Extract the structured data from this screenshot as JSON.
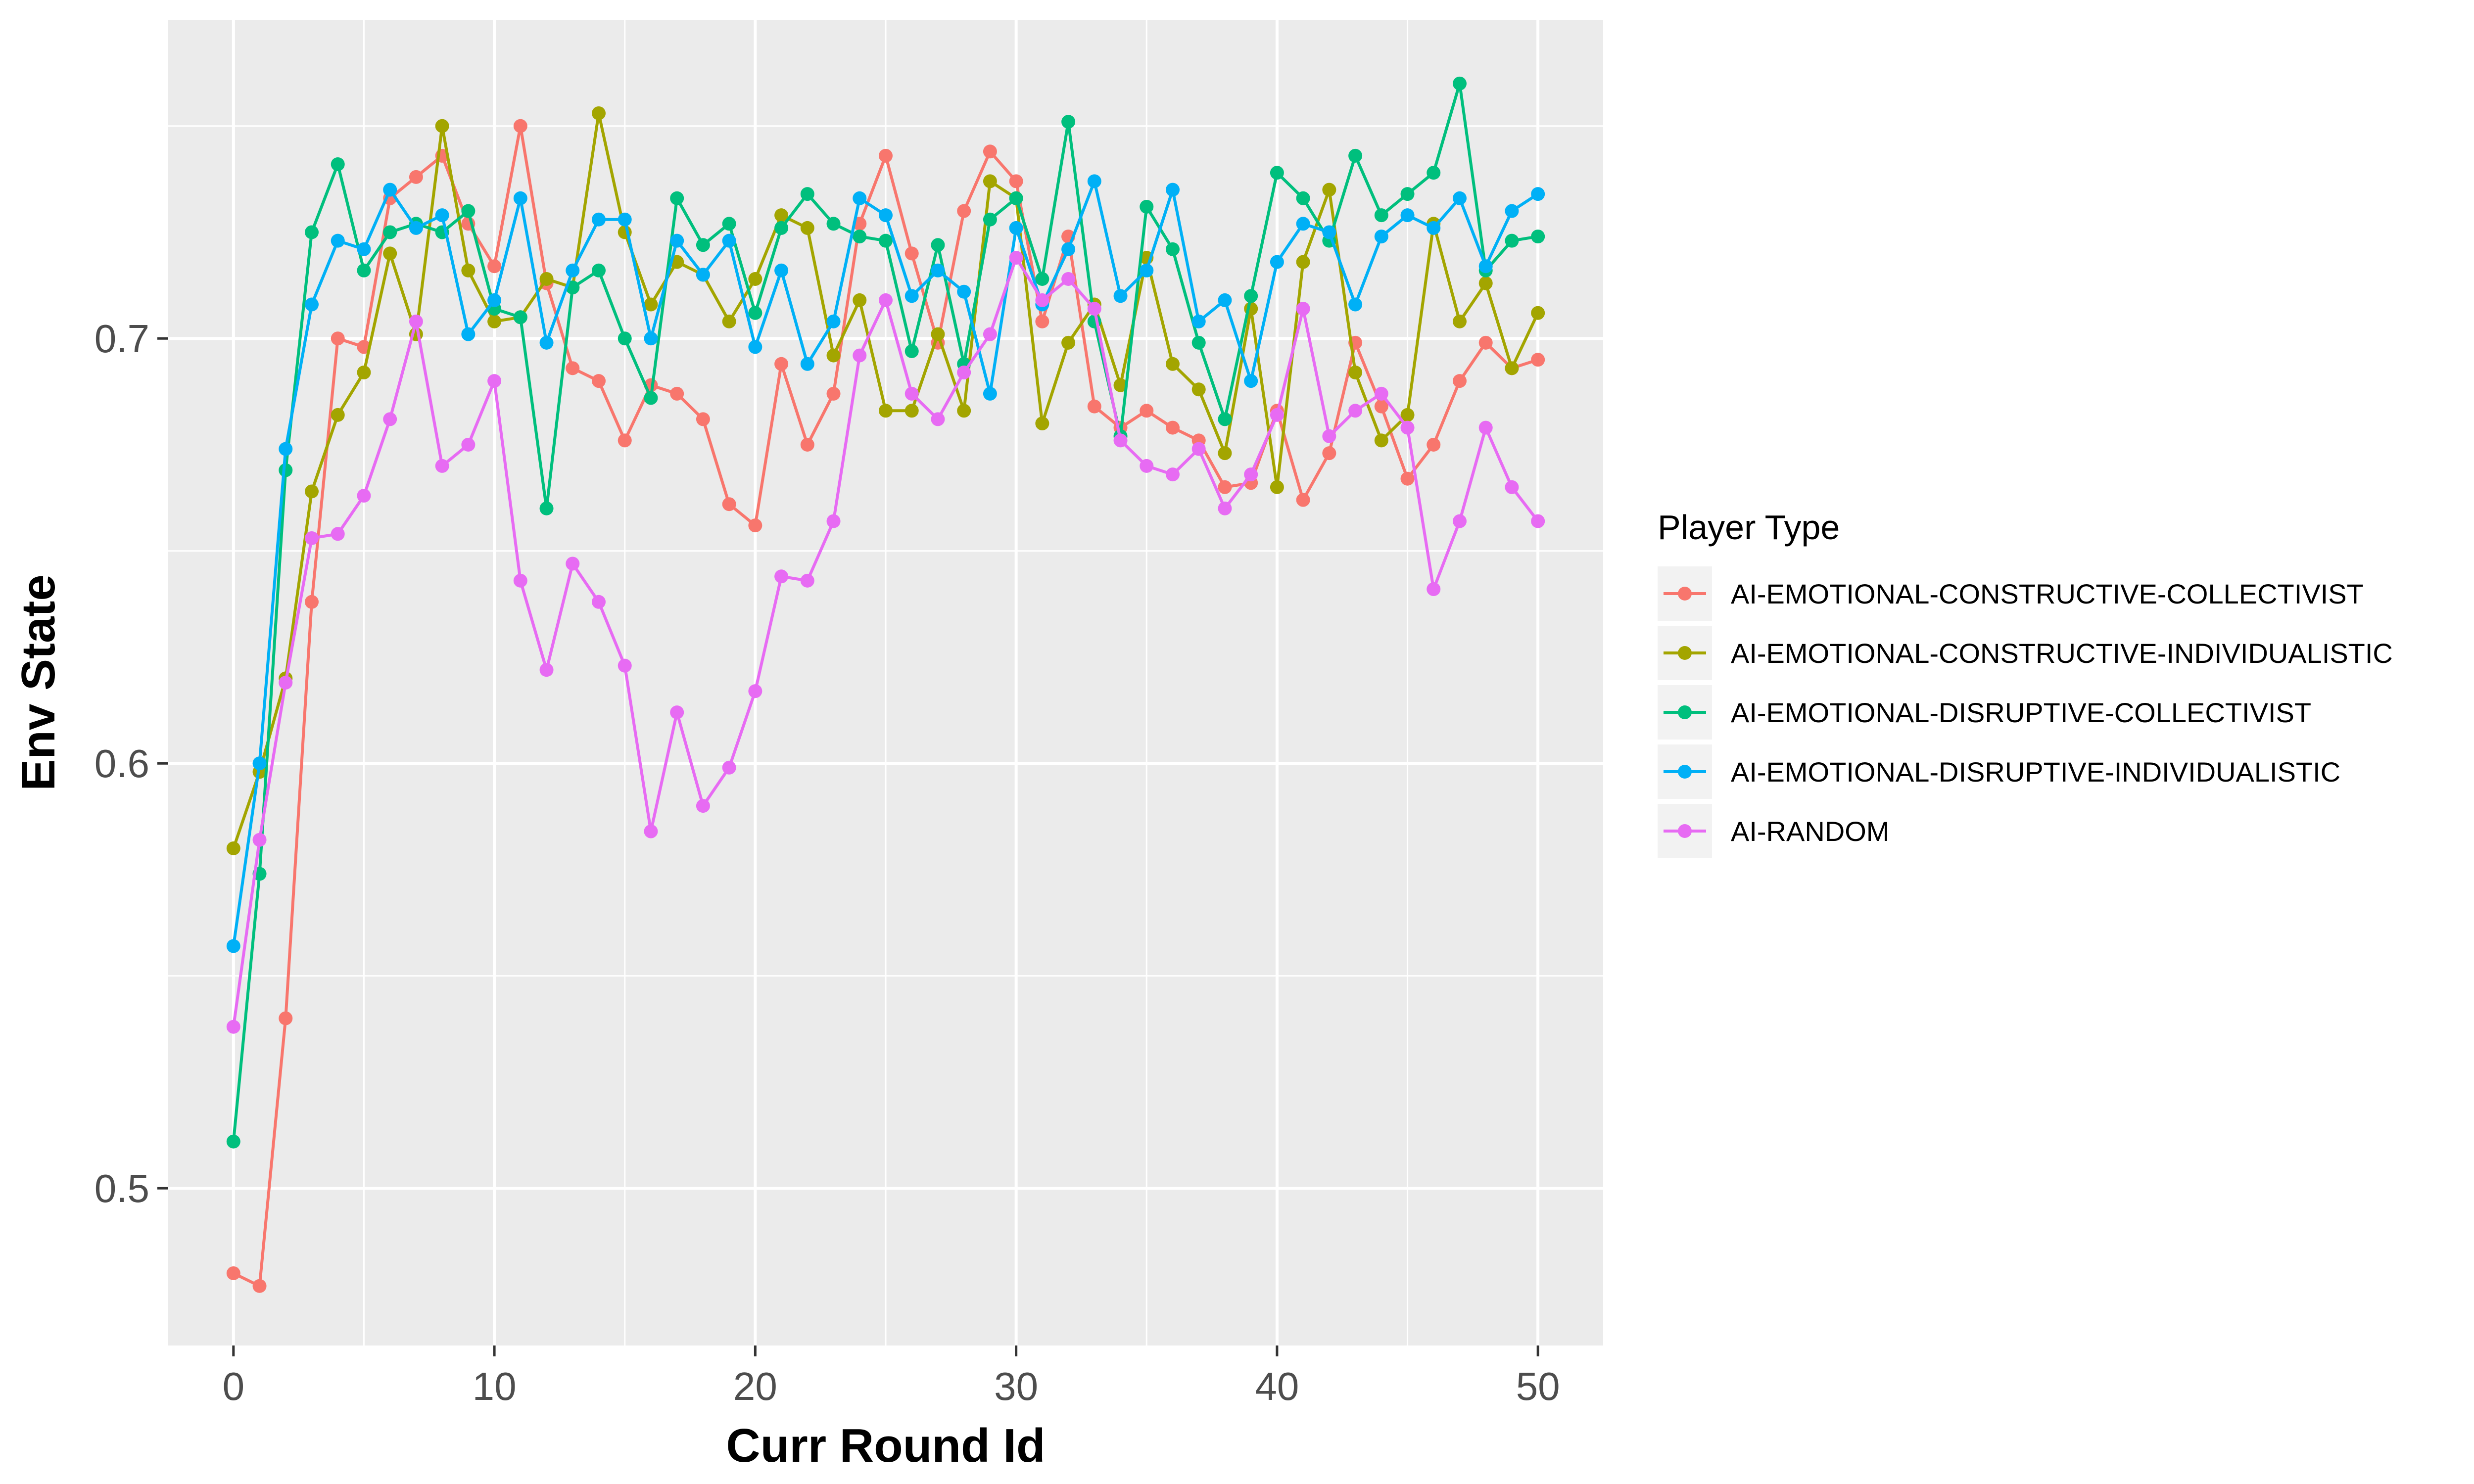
{
  "chart_data": {
    "type": "line",
    "xlabel": "Curr Round Id",
    "ylabel": "Env State",
    "xlim": [
      -2.5,
      52.5
    ],
    "ylim": [
      0.463,
      0.775
    ],
    "x_ticks": [
      0,
      10,
      20,
      30,
      40,
      50
    ],
    "x_tick_labels": [
      "0",
      "10",
      "20",
      "30",
      "40",
      "50"
    ],
    "y_ticks": [
      0.5,
      0.6,
      0.7
    ],
    "y_tick_labels": [
      "0.5",
      "0.6",
      "0.7"
    ],
    "grid": true,
    "legend_title": "Player Type",
    "legend_position": "right",
    "x": [
      0,
      1,
      2,
      3,
      4,
      5,
      6,
      7,
      8,
      9,
      10,
      11,
      12,
      13,
      14,
      15,
      16,
      17,
      18,
      19,
      20,
      21,
      22,
      23,
      24,
      25,
      26,
      27,
      28,
      29,
      30,
      31,
      32,
      33,
      34,
      35,
      36,
      37,
      38,
      39,
      40,
      41,
      42,
      43,
      44,
      45,
      46,
      47,
      48,
      49,
      50
    ],
    "series": [
      {
        "name": "AI-EMOTIONAL-CONSTRUCTIVE-COLLECTIVIST",
        "color": "#F8766D",
        "values": [
          0.48,
          0.477,
          0.54,
          0.638,
          0.7,
          0.698,
          0.733,
          0.738,
          0.743,
          0.727,
          0.717,
          0.75,
          0.713,
          0.693,
          0.69,
          0.676,
          0.689,
          0.687,
          0.681,
          0.661,
          0.656,
          0.694,
          0.675,
          0.687,
          0.727,
          0.743,
          0.72,
          0.699,
          0.73,
          0.744,
          0.737,
          0.704,
          0.724,
          0.684,
          0.679,
          0.683,
          0.679,
          0.676,
          0.665,
          0.666,
          0.683,
          0.662,
          0.673,
          0.699,
          0.684,
          0.667,
          0.675,
          0.69,
          0.699,
          0.693,
          0.695
        ]
      },
      {
        "name": "AI-EMOTIONAL-CONSTRUCTIVE-INDIVIDUALISTIC",
        "color": "#A3A500",
        "values": [
          0.58,
          0.598,
          0.62,
          0.664,
          0.682,
          0.692,
          0.72,
          0.701,
          0.75,
          0.716,
          0.704,
          0.705,
          0.714,
          0.712,
          0.753,
          0.725,
          0.708,
          0.718,
          0.715,
          0.704,
          0.714,
          0.729,
          0.726,
          0.696,
          0.709,
          0.683,
          0.683,
          0.701,
          0.683,
          0.737,
          0.733,
          0.68,
          0.699,
          0.708,
          0.689,
          0.719,
          0.694,
          0.688,
          0.673,
          0.707,
          0.665,
          0.718,
          0.735,
          0.692,
          0.676,
          0.682,
          0.727,
          0.704,
          0.713,
          0.693,
          0.706
        ]
      },
      {
        "name": "AI-EMOTIONAL-DISRUPTIVE-COLLECTIVIST",
        "color": "#00BF7D",
        "values": [
          0.511,
          0.574,
          0.669,
          0.725,
          0.741,
          0.716,
          0.725,
          0.727,
          0.725,
          0.73,
          0.707,
          0.705,
          0.66,
          0.712,
          0.716,
          0.7,
          0.686,
          0.733,
          0.722,
          0.727,
          0.706,
          0.726,
          0.734,
          0.727,
          0.724,
          0.723,
          0.697,
          0.722,
          0.694,
          0.728,
          0.733,
          0.714,
          0.751,
          0.704,
          0.677,
          0.731,
          0.721,
          0.699,
          0.681,
          0.71,
          0.739,
          0.733,
          0.723,
          0.743,
          0.729,
          0.734,
          0.739,
          0.76,
          0.716,
          0.723,
          0.724
        ]
      },
      {
        "name": "AI-EMOTIONAL-DISRUPTIVE-INDIVIDUALISTIC",
        "color": "#00B0F6",
        "values": [
          0.557,
          0.6,
          0.674,
          0.708,
          0.723,
          0.721,
          0.735,
          0.726,
          0.729,
          0.701,
          0.709,
          0.733,
          0.699,
          0.716,
          0.728,
          0.728,
          0.7,
          0.723,
          0.715,
          0.723,
          0.698,
          0.716,
          0.694,
          0.704,
          0.733,
          0.729,
          0.71,
          0.716,
          0.711,
          0.687,
          0.726,
          0.708,
          0.721,
          0.737,
          0.71,
          0.716,
          0.735,
          0.704,
          0.709,
          0.69,
          0.718,
          0.727,
          0.725,
          0.708,
          0.724,
          0.729,
          0.726,
          0.733,
          0.717,
          0.73,
          0.734
        ]
      },
      {
        "name": "AI-RANDOM",
        "color": "#E76BF3",
        "values": [
          0.538,
          0.582,
          0.619,
          0.653,
          0.654,
          0.663,
          0.681,
          0.704,
          0.67,
          0.675,
          0.69,
          0.643,
          0.622,
          0.647,
          0.638,
          0.623,
          0.584,
          0.612,
          0.59,
          0.599,
          0.617,
          0.644,
          0.643,
          0.657,
          0.696,
          0.709,
          0.687,
          0.681,
          0.692,
          0.701,
          0.719,
          0.709,
          0.714,
          0.707,
          0.676,
          0.67,
          0.668,
          0.674,
          0.66,
          0.668,
          0.682,
          0.707,
          0.677,
          0.683,
          0.687,
          0.679,
          0.641,
          0.657,
          0.679,
          0.665,
          0.657
        ]
      }
    ]
  }
}
